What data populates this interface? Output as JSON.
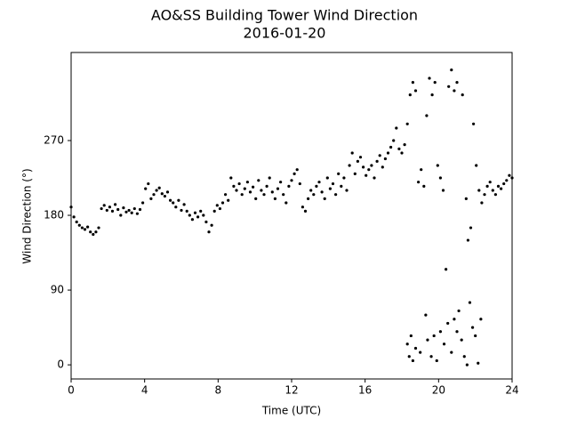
{
  "chart_data": {
    "type": "scatter",
    "title": "AO&SS Building Tower Wind Direction",
    "subtitle": "2016-01-20",
    "x_label": "Time (UTC)",
    "y_label": "Wind Direction (°)",
    "color": "#000000",
    "xlim": [
      0,
      24
    ],
    "ylim": [
      -17,
      376
    ],
    "xticks": [
      0,
      4,
      8,
      12,
      16,
      20,
      24
    ],
    "yticks": [
      0,
      90,
      180,
      270
    ],
    "x": [
      0.0,
      0.15,
      0.3,
      0.45,
      0.6,
      0.75,
      0.9,
      1.05,
      1.2,
      1.35,
      1.5,
      1.65,
      1.8,
      1.95,
      2.1,
      2.25,
      2.4,
      2.55,
      2.7,
      2.85,
      3.0,
      3.15,
      3.3,
      3.45,
      3.6,
      3.75,
      3.9,
      4.05,
      4.2,
      4.35,
      4.5,
      4.65,
      4.8,
      4.95,
      5.1,
      5.25,
      5.4,
      5.55,
      5.7,
      5.85,
      6.0,
      6.15,
      6.3,
      6.45,
      6.6,
      6.75,
      6.9,
      7.05,
      7.2,
      7.35,
      7.5,
      7.65,
      7.8,
      7.95,
      8.1,
      8.25,
      8.4,
      8.55,
      8.7,
      8.85,
      9.0,
      9.15,
      9.3,
      9.45,
      9.6,
      9.75,
      9.9,
      10.05,
      10.2,
      10.35,
      10.5,
      10.65,
      10.8,
      10.95,
      11.1,
      11.25,
      11.4,
      11.55,
      11.7,
      11.85,
      12.0,
      12.15,
      12.3,
      12.45,
      12.6,
      12.75,
      12.9,
      13.05,
      13.2,
      13.35,
      13.5,
      13.65,
      13.8,
      13.95,
      14.1,
      14.25,
      14.4,
      14.55,
      14.7,
      14.85,
      15.0,
      15.15,
      15.3,
      15.45,
      15.6,
      15.75,
      15.9,
      16.05,
      16.2,
      16.35,
      16.5,
      16.65,
      16.8,
      16.95,
      17.1,
      17.25,
      17.4,
      17.55,
      17.7,
      17.85,
      18.0,
      18.15,
      18.3,
      18.45,
      18.6,
      18.75,
      18.9,
      19.05,
      19.2,
      19.35,
      19.5,
      19.65,
      19.8,
      19.95,
      20.1,
      20.25,
      20.4,
      20.55,
      20.7,
      20.85,
      21.0,
      21.3,
      21.5,
      21.6,
      21.75,
      21.9,
      22.05,
      22.2,
      22.35,
      22.5,
      22.65,
      22.8,
      22.95,
      23.1,
      23.25,
      23.4,
      23.55,
      23.7,
      23.85,
      24.0,
      18.3,
      18.4,
      18.5,
      18.6,
      18.75,
      19.0,
      19.3,
      19.4,
      19.6,
      19.75,
      19.9,
      20.1,
      20.3,
      20.5,
      20.7,
      20.85,
      21.0,
      21.1,
      21.25,
      21.4,
      21.55,
      21.7,
      21.85,
      22.0,
      22.15,
      22.3
    ],
    "values": [
      190,
      178,
      172,
      168,
      165,
      163,
      166,
      160,
      157,
      160,
      165,
      188,
      192,
      186,
      190,
      185,
      193,
      187,
      180,
      189,
      184,
      186,
      183,
      188,
      182,
      187,
      195,
      212,
      218,
      200,
      205,
      210,
      213,
      206,
      203,
      208,
      198,
      195,
      190,
      198,
      186,
      193,
      185,
      180,
      175,
      183,
      178,
      185,
      180,
      172,
      160,
      168,
      185,
      192,
      188,
      195,
      205,
      198,
      225,
      215,
      210,
      218,
      205,
      212,
      220,
      208,
      214,
      200,
      222,
      210,
      205,
      215,
      225,
      208,
      200,
      212,
      220,
      205,
      195,
      215,
      222,
      230,
      235,
      218,
      190,
      185,
      200,
      210,
      205,
      215,
      220,
      208,
      200,
      225,
      212,
      218,
      205,
      230,
      215,
      225,
      210,
      240,
      255,
      230,
      245,
      250,
      238,
      228,
      235,
      240,
      225,
      245,
      252,
      238,
      248,
      255,
      262,
      270,
      285,
      260,
      255,
      265,
      290,
      325,
      340,
      330,
      220,
      235,
      215,
      300,
      345,
      325,
      340,
      240,
      225,
      210,
      115,
      335,
      355,
      330,
      340,
      325,
      200,
      150,
      165,
      290,
      240,
      210,
      195,
      205,
      215,
      220,
      210,
      205,
      215,
      212,
      218,
      222,
      228,
      225,
      25,
      10,
      35,
      5,
      20,
      15,
      60,
      30,
      10,
      35,
      5,
      40,
      25,
      50,
      15,
      55,
      40,
      65,
      30,
      10,
      0,
      75,
      45,
      35,
      2,
      55
    ]
  }
}
